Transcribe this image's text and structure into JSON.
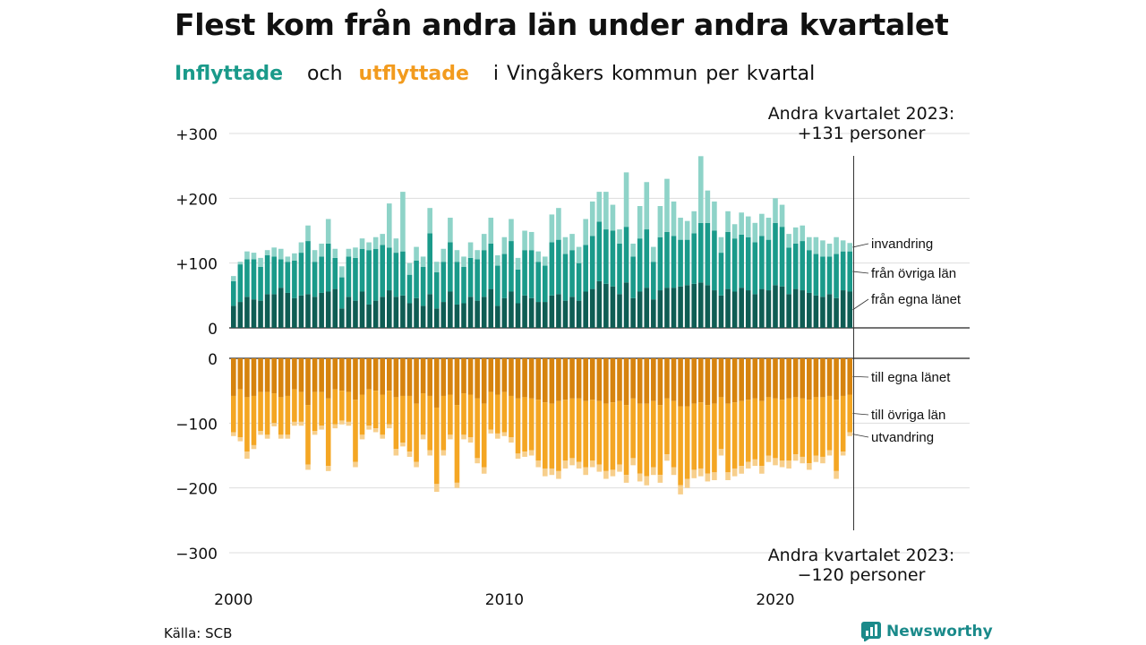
{
  "header": {
    "title": "Flest kom från andra län under andra kvartalet",
    "subtitle_inflow": "Inflyttade",
    "subtitle_and": "och",
    "subtitle_outflow": "utflyttade",
    "subtitle_rest": "i Vingåkers  kommun  per  kvartal"
  },
  "footer": {
    "source": "Källa: SCB",
    "logo_text": "Newsworthy"
  },
  "chart_data": {
    "type": "bar",
    "stacked": true,
    "diverging": true,
    "x_unit": "kvartal",
    "x_start": "2000 Q1",
    "x_end": "2023 Q2",
    "x_ticks": [
      "2000",
      "2010",
      "2020"
    ],
    "y_ticks_top": [
      "+300",
      "+200",
      "+100",
      "0"
    ],
    "y_ticks_bottom": [
      "0",
      "−100",
      "−200",
      "−300"
    ],
    "ylim_inflow": [
      0,
      300
    ],
    "ylim_outflow": [
      -300,
      0
    ],
    "colors": {
      "inflow_own": "#0f5d54",
      "inflow_other": "#1a9a8a",
      "inflow_immigration": "#8ed3c8",
      "outflow_own": "#d6830e",
      "outflow_other": "#f4a623",
      "outflow_emigration": "#f7cf8c"
    },
    "series_labels": {
      "inflow_immigration": "invandring",
      "inflow_other": "från övriga län",
      "inflow_own": "från egna länet",
      "outflow_own": "till egna länet",
      "outflow_other": "till övriga län",
      "outflow_emigration": "utvandring"
    },
    "annotations": {
      "top_line1": "Andra kvartalet 2023:",
      "top_line2": "+131 personer",
      "bottom_line1": "Andra kvartalet 2023:",
      "bottom_line2": "−120 personer"
    },
    "inflow_total": [
      80,
      102,
      118,
      116,
      108,
      120,
      124,
      122,
      110,
      115,
      132,
      158,
      120,
      130,
      168,
      122,
      95,
      122,
      124,
      138,
      132,
      140,
      145,
      192,
      138,
      210,
      100,
      125,
      110,
      185,
      102,
      122,
      170,
      120,
      110,
      132,
      120,
      145,
      170,
      112,
      140,
      168,
      108,
      150,
      148,
      118,
      110,
      175,
      185,
      140,
      145,
      125,
      168,
      195,
      210,
      210,
      190,
      152,
      240,
      130,
      188,
      225,
      125,
      188,
      230,
      195,
      170,
      165,
      180,
      265,
      212,
      195,
      140,
      180,
      160,
      178,
      172,
      162,
      176,
      170,
      200,
      190,
      145,
      155,
      158,
      140,
      140,
      135,
      130,
      140,
      135,
      131
    ],
    "inflow_own": [
      34,
      40,
      48,
      44,
      42,
      52,
      52,
      62,
      54,
      46,
      50,
      52,
      48,
      54,
      56,
      60,
      30,
      48,
      42,
      56,
      36,
      42,
      48,
      58,
      48,
      50,
      38,
      46,
      34,
      52,
      30,
      40,
      56,
      36,
      38,
      48,
      42,
      48,
      60,
      34,
      46,
      56,
      38,
      50,
      46,
      40,
      40,
      50,
      52,
      42,
      48,
      42,
      56,
      60,
      72,
      68,
      64,
      52,
      70,
      46,
      56,
      62,
      44,
      58,
      62,
      62,
      64,
      66,
      68,
      70,
      66,
      58,
      50,
      60,
      56,
      62,
      58,
      52,
      60,
      58,
      66,
      64,
      52,
      60,
      58,
      54,
      50,
      48,
      52,
      46,
      58,
      56
    ],
    "inflow_other": [
      38,
      58,
      58,
      62,
      52,
      60,
      58,
      44,
      48,
      58,
      66,
      82,
      54,
      56,
      74,
      48,
      48,
      62,
      66,
      66,
      84,
      80,
      80,
      66,
      68,
      68,
      44,
      58,
      60,
      94,
      56,
      62,
      76,
      66,
      56,
      60,
      64,
      72,
      70,
      62,
      68,
      78,
      52,
      70,
      74,
      62,
      56,
      82,
      84,
      72,
      72,
      58,
      72,
      82,
      92,
      84,
      86,
      78,
      86,
      64,
      82,
      90,
      58,
      82,
      86,
      80,
      72,
      70,
      78,
      92,
      96,
      92,
      66,
      88,
      82,
      82,
      82,
      80,
      82,
      78,
      96,
      92,
      72,
      70,
      76,
      66,
      64,
      62,
      58,
      68,
      60,
      62
    ],
    "inflow_immigration": [
      8,
      4,
      12,
      10,
      14,
      8,
      14,
      16,
      8,
      11,
      16,
      24,
      18,
      20,
      38,
      14,
      17,
      12,
      16,
      16,
      12,
      18,
      17,
      68,
      22,
      92,
      18,
      21,
      16,
      39,
      16,
      20,
      38,
      18,
      16,
      24,
      14,
      25,
      40,
      16,
      26,
      34,
      18,
      30,
      28,
      16,
      14,
      43,
      49,
      26,
      25,
      25,
      40,
      53,
      46,
      58,
      40,
      22,
      84,
      20,
      50,
      73,
      23,
      48,
      82,
      53,
      34,
      29,
      34,
      103,
      50,
      45,
      24,
      32,
      22,
      34,
      32,
      30,
      34,
      34,
      38,
      34,
      21,
      25,
      24,
      20,
      26,
      25,
      20,
      26,
      17,
      13
    ],
    "outflow_total": [
      120,
      128,
      155,
      140,
      118,
      124,
      105,
      124,
      124,
      104,
      104,
      172,
      118,
      110,
      174,
      108,
      102,
      104,
      168,
      125,
      110,
      114,
      124,
      108,
      150,
      136,
      152,
      168,
      125,
      150,
      206,
      150,
      125,
      200,
      125,
      130,
      162,
      178,
      116,
      124,
      120,
      130,
      155,
      152,
      150,
      168,
      182,
      180,
      186,
      170,
      165,
      170,
      180,
      168,
      175,
      186,
      182,
      175,
      192,
      165,
      190,
      196,
      180,
      192,
      158,
      180,
      210,
      200,
      185,
      182,
      190,
      188,
      150,
      188,
      182,
      178,
      170,
      166,
      178,
      160,
      165,
      168,
      170,
      158,
      162,
      172,
      160,
      162,
      150,
      186,
      150,
      120
    ],
    "outflow_own": [
      58,
      48,
      60,
      58,
      52,
      52,
      54,
      60,
      58,
      48,
      52,
      72,
      52,
      52,
      62,
      48,
      50,
      52,
      64,
      56,
      48,
      50,
      56,
      50,
      60,
      58,
      58,
      70,
      54,
      58,
      76,
      58,
      56,
      72,
      54,
      56,
      62,
      70,
      52,
      56,
      52,
      58,
      62,
      60,
      62,
      64,
      68,
      70,
      66,
      64,
      62,
      62,
      66,
      64,
      66,
      70,
      68,
      66,
      72,
      62,
      70,
      70,
      66,
      72,
      62,
      66,
      74,
      74,
      70,
      68,
      72,
      70,
      60,
      70,
      68,
      66,
      64,
      62,
      66,
      60,
      62,
      64,
      62,
      60,
      62,
      64,
      60,
      60,
      58,
      64,
      58,
      56
    ],
    "outflow_other": [
      56,
      74,
      84,
      76,
      60,
      66,
      46,
      58,
      60,
      50,
      46,
      92,
      60,
      52,
      104,
      54,
      46,
      46,
      96,
      62,
      56,
      58,
      62,
      52,
      80,
      72,
      86,
      90,
      64,
      84,
      118,
      84,
      62,
      120,
      64,
      66,
      92,
      98,
      58,
      60,
      62,
      64,
      85,
      84,
      80,
      94,
      102,
      100,
      108,
      94,
      92,
      98,
      102,
      94,
      98,
      104,
      104,
      98,
      108,
      92,
      108,
      112,
      102,
      108,
      86,
      102,
      122,
      112,
      102,
      102,
      106,
      106,
      80,
      106,
      102,
      100,
      96,
      94,
      100,
      90,
      92,
      94,
      96,
      88,
      90,
      98,
      90,
      92,
      84,
      110,
      86,
      58
    ],
    "outflow_emigration": [
      6,
      6,
      11,
      6,
      6,
      6,
      5,
      6,
      6,
      6,
      6,
      8,
      6,
      6,
      8,
      6,
      6,
      6,
      8,
      7,
      6,
      6,
      6,
      6,
      10,
      6,
      8,
      8,
      7,
      8,
      12,
      8,
      7,
      8,
      7,
      8,
      8,
      10,
      6,
      8,
      6,
      8,
      8,
      8,
      8,
      10,
      12,
      10,
      12,
      12,
      11,
      10,
      12,
      10,
      11,
      12,
      10,
      11,
      12,
      11,
      12,
      14,
      12,
      12,
      10,
      12,
      14,
      14,
      13,
      12,
      12,
      12,
      10,
      12,
      12,
      12,
      10,
      10,
      12,
      10,
      11,
      10,
      12,
      10,
      10,
      10,
      10,
      10,
      8,
      12,
      6,
      6
    ]
  }
}
